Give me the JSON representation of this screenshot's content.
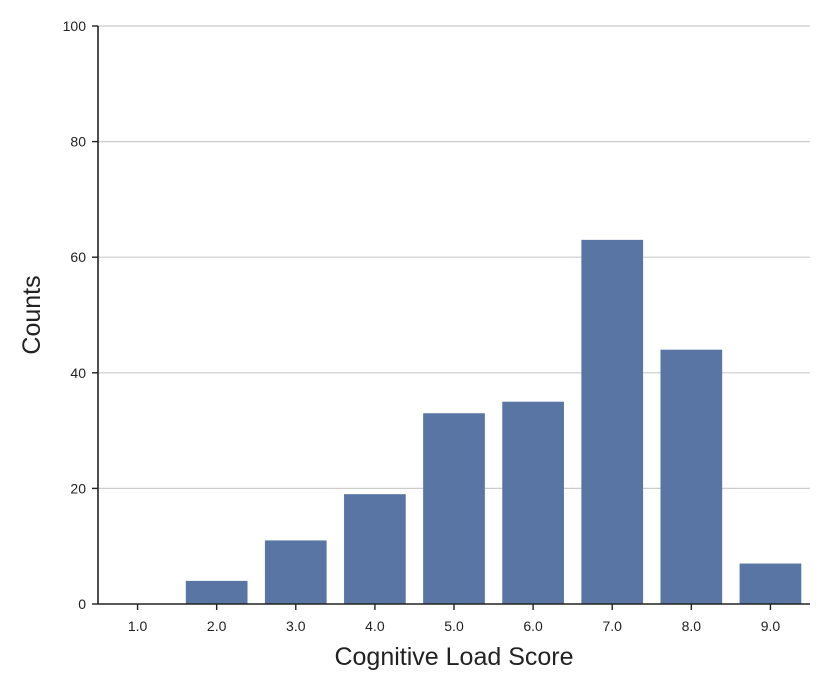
{
  "chart_data": {
    "type": "bar",
    "title": "",
    "xlabel": "Cognitive Load Score",
    "ylabel": "Counts",
    "categories": [
      "1.0",
      "2.0",
      "3.0",
      "4.0",
      "5.0",
      "6.0",
      "7.0",
      "8.0",
      "9.0"
    ],
    "values": [
      0,
      4,
      11,
      19,
      33,
      35,
      63,
      44,
      7
    ],
    "ylim": [
      0,
      100
    ],
    "yticks": [
      "0",
      "20",
      "40",
      "60",
      "80",
      "100"
    ],
    "grid": "horizontal",
    "bar_color": "#5875a4"
  }
}
